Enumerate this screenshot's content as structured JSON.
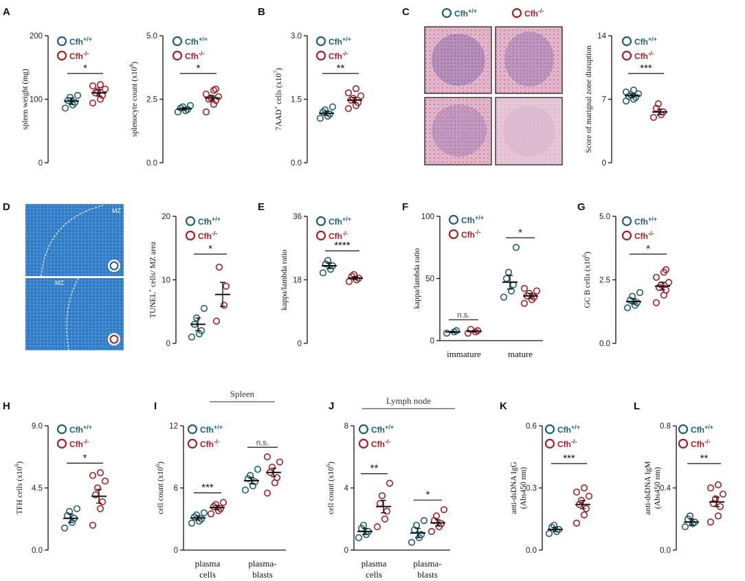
{
  "colors": {
    "wt": "#1d5e6e",
    "ko": "#a51d24"
  },
  "legend": {
    "wt_base": "Cfh",
    "wt_sup": "+/+",
    "ko_base": "Cfh",
    "ko_sup": "-/-"
  },
  "panels": {
    "A": "A",
    "B": "B",
    "C": "C",
    "D": "D",
    "E": "E",
    "F": "F",
    "G": "G",
    "H": "H",
    "I": "I",
    "J": "J",
    "K": "K",
    "L": "L"
  },
  "micro_labels": {
    "mz": "MZ"
  },
  "chart_data": [
    {
      "id": "A1",
      "type": "scatter",
      "ylabel": "spleen weight (mg)",
      "yticks": [
        "0",
        "100",
        "200"
      ],
      "ylim": [
        0,
        200
      ],
      "groups": [
        {
          "name": "Cfh+/+",
          "mean": 97,
          "sem": 5,
          "points": [
            86,
            91,
            95,
            98,
            103,
            106
          ]
        },
        {
          "name": "Cfh-/-",
          "mean": 110,
          "sem": 5,
          "points": [
            94,
            100,
            106,
            110,
            113,
            116,
            121,
            123
          ]
        }
      ],
      "sig": [
        {
          "label": "*",
          "from": 0,
          "to": 1
        }
      ]
    },
    {
      "id": "A2",
      "type": "scatter",
      "ylabel": "splenocyte count (x10^8)",
      "yticks": [
        "0.0",
        "2.5",
        "5.0"
      ],
      "ylim": [
        0,
        5
      ],
      "groups": [
        {
          "name": "Cfh+/+",
          "mean": 2.12,
          "sem": 0.05,
          "points": [
            2.0,
            2.05,
            2.1,
            2.15,
            2.2,
            2.25
          ]
        },
        {
          "name": "Cfh-/-",
          "mean": 2.55,
          "sem": 0.08,
          "points": [
            2.0,
            2.3,
            2.45,
            2.5,
            2.55,
            2.6,
            2.7,
            2.85,
            2.9
          ]
        }
      ],
      "sig": [
        {
          "label": "*",
          "from": 0,
          "to": 1
        }
      ]
    },
    {
      "id": "B",
      "type": "scatter",
      "ylabel": "7AAD+ cells (x10^7)",
      "yticks": [
        "0.0",
        "1.5",
        "3.0"
      ],
      "ylim": [
        0,
        3
      ],
      "groups": [
        {
          "name": "Cfh+/+",
          "mean": 1.17,
          "sem": 0.05,
          "points": [
            1.05,
            1.1,
            1.15,
            1.2,
            1.25,
            1.32
          ]
        },
        {
          "name": "Cfh-/-",
          "mean": 1.48,
          "sem": 0.06,
          "points": [
            1.28,
            1.35,
            1.42,
            1.48,
            1.52,
            1.58,
            1.65,
            1.75
          ]
        }
      ],
      "sig": [
        {
          "label": "**",
          "from": 0,
          "to": 1
        }
      ]
    },
    {
      "id": "C",
      "type": "scatter",
      "ylabel": "Score of marignal zone disruption",
      "yticks": [
        "0",
        "7",
        "14"
      ],
      "ylim": [
        0,
        14
      ],
      "groups": [
        {
          "name": "Cfh+/+",
          "mean": 7.4,
          "sem": 0.2,
          "points": [
            6.8,
            7.0,
            7.2,
            7.3,
            7.5,
            7.6,
            7.8,
            8.0
          ]
        },
        {
          "name": "Cfh-/-",
          "mean": 5.6,
          "sem": 0.3,
          "points": [
            5.0,
            5.3,
            5.6,
            6.0,
            6.5
          ]
        }
      ],
      "sig": [
        {
          "label": "***",
          "from": 0,
          "to": 1
        }
      ]
    },
    {
      "id": "D",
      "type": "scatter",
      "ylabel": "TUNEL+ cells/ MZ area",
      "yticks": [
        "0",
        "10",
        "20"
      ],
      "ylim": [
        0,
        20
      ],
      "groups": [
        {
          "name": "Cfh+/+",
          "mean": 3,
          "sem": 1,
          "points": [
            1,
            1.5,
            2,
            3,
            4,
            5.5
          ]
        },
        {
          "name": "Cfh-/-",
          "mean": 7.7,
          "sem": 1.9,
          "points": [
            3.5,
            6,
            9,
            12
          ]
        }
      ],
      "sig": [
        {
          "label": "*",
          "from": 0,
          "to": 1
        }
      ]
    },
    {
      "id": "E",
      "type": "scatter",
      "ylabel": "kappa/lambda ratio",
      "yticks": [
        "0",
        "18",
        "36"
      ],
      "ylim": [
        0,
        36
      ],
      "groups": [
        {
          "name": "Cfh+/+",
          "mean": 22,
          "sem": 0.8,
          "points": [
            20,
            21,
            22,
            22.5,
            23.5
          ]
        },
        {
          "name": "Cfh-/-",
          "mean": 18.5,
          "sem": 0.4,
          "points": [
            17.5,
            18,
            18.5,
            19,
            19.5
          ]
        }
      ],
      "sig": [
        {
          "label": "****",
          "from": 0,
          "to": 1
        }
      ]
    },
    {
      "id": "F",
      "type": "scatter",
      "ylabel": "kappa/lambda ratio",
      "yticks": [
        "0",
        "50",
        "100"
      ],
      "ylim": [
        0,
        100
      ],
      "categories": [
        "immature",
        "mature"
      ],
      "groups": [
        {
          "name": "Cfh+/+",
          "category": "immature",
          "mean": 7,
          "sem": 0.5,
          "points": [
            6,
            7,
            8
          ]
        },
        {
          "name": "Cfh-/-",
          "category": "immature",
          "mean": 7.5,
          "sem": 0.5,
          "points": [
            6,
            7,
            8,
            9
          ]
        },
        {
          "name": "Cfh+/+",
          "category": "mature",
          "mean": 47,
          "sem": 5.5,
          "points": [
            35,
            40,
            45,
            50,
            55,
            75
          ]
        },
        {
          "name": "Cfh-/-",
          "category": "mature",
          "mean": 36,
          "sem": 2,
          "points": [
            30,
            33,
            35,
            36,
            38,
            40,
            42
          ]
        }
      ],
      "sig": [
        {
          "label": "n.s.",
          "from": 0,
          "to": 1
        },
        {
          "label": "*",
          "from": 2,
          "to": 3
        }
      ]
    },
    {
      "id": "G",
      "type": "scatter",
      "ylabel": "GC B cells (x10^6)",
      "yticks": [
        "0.0",
        "2.5",
        "5.0"
      ],
      "ylim": [
        0,
        5
      ],
      "groups": [
        {
          "name": "Cfh+/+",
          "mean": 1.65,
          "sem": 0.1,
          "points": [
            1.4,
            1.5,
            1.6,
            1.7,
            1.85,
            2.0
          ]
        },
        {
          "name": "Cfh-/-",
          "mean": 2.25,
          "sem": 0.15,
          "points": [
            1.6,
            1.9,
            2.1,
            2.2,
            2.3,
            2.4,
            2.6,
            2.8,
            2.9
          ]
        }
      ],
      "sig": [
        {
          "label": "*",
          "from": 0,
          "to": 1
        }
      ]
    },
    {
      "id": "H",
      "type": "scatter",
      "ylabel": "TFH cells (x10^6)",
      "yticks": [
        "0.0",
        "4.5",
        "9.0"
      ],
      "ylim": [
        0,
        9
      ],
      "groups": [
        {
          "name": "Cfh+/+",
          "mean": 2.3,
          "sem": 0.3,
          "points": [
            1.6,
            2.0,
            2.3,
            2.5,
            2.8,
            3.0
          ]
        },
        {
          "name": "Cfh-/-",
          "mean": 3.9,
          "sem": 0.5,
          "points": [
            1.8,
            3.0,
            3.5,
            4.0,
            4.5,
            5.0,
            5.4,
            5.6
          ]
        }
      ],
      "sig": [
        {
          "label": "*",
          "from": 0,
          "to": 1
        }
      ]
    },
    {
      "id": "I",
      "type": "scatter",
      "ylabel": "cell count (x10^6)",
      "yticks": [
        "0",
        "6",
        "12"
      ],
      "ylim": [
        0,
        12
      ],
      "group_title": "Spleen",
      "categories": [
        "plasma cells",
        "plasma-blasts"
      ],
      "groups": [
        {
          "name": "Cfh+/+",
          "category": "plasma cells",
          "mean": 3.1,
          "sem": 0.2,
          "points": [
            2.6,
            2.8,
            3.0,
            3.2,
            3.4,
            3.6
          ]
        },
        {
          "name": "Cfh-/-",
          "category": "plasma cells",
          "mean": 4.1,
          "sem": 0.2,
          "points": [
            3.5,
            3.8,
            4.0,
            4.2,
            4.4,
            4.6
          ]
        },
        {
          "name": "Cfh+/+",
          "category": "plasma-blasts",
          "mean": 6.7,
          "sem": 0.3,
          "points": [
            5.8,
            6.2,
            6.6,
            6.9,
            7.2,
            7.8
          ]
        },
        {
          "name": "Cfh-/-",
          "category": "plasma-blasts",
          "mean": 7.5,
          "sem": 0.4,
          "points": [
            5.5,
            6.5,
            7.0,
            7.5,
            8.0,
            8.5,
            9.0
          ]
        }
      ],
      "sig": [
        {
          "label": "***",
          "from": 0,
          "to": 1
        },
        {
          "label": "n.s.",
          "from": 2,
          "to": 3
        }
      ]
    },
    {
      "id": "J",
      "type": "scatter",
      "ylabel": "cell count (x10^6)",
      "yticks": [
        "0",
        "4",
        "8"
      ],
      "ylim": [
        0,
        8
      ],
      "group_title": "Lymph node",
      "categories": [
        "plasma cells",
        "plasma-blasts"
      ],
      "groups": [
        {
          "name": "Cfh+/+",
          "category": "plasma cells",
          "mean": 1.2,
          "sem": 0.2,
          "points": [
            0.8,
            1.0,
            1.2,
            1.4,
            1.6
          ]
        },
        {
          "name": "Cfh-/-",
          "category": "plasma cells",
          "mean": 2.8,
          "sem": 0.4,
          "points": [
            1.5,
            2.0,
            2.5,
            3.0,
            3.5,
            4.3
          ]
        },
        {
          "name": "Cfh+/+",
          "category": "plasma-blasts",
          "mean": 1.1,
          "sem": 0.3,
          "points": [
            0.5,
            0.8,
            1.0,
            1.3,
            1.6,
            1.9
          ]
        },
        {
          "name": "Cfh-/-",
          "category": "plasma-blasts",
          "mean": 1.75,
          "sem": 0.2,
          "points": [
            1.2,
            1.5,
            1.7,
            1.9,
            2.2,
            2.6
          ]
        }
      ],
      "sig": [
        {
          "label": "**",
          "from": 0,
          "to": 1
        },
        {
          "label": "*",
          "from": 2,
          "to": 3
        }
      ]
    },
    {
      "id": "K",
      "type": "scatter",
      "ylabel": "anti-dsDNA IgG",
      "ylabel2": "(Abs450 nm)",
      "yticks": [
        "0.0",
        "0.3",
        "0.6"
      ],
      "ylim": [
        0,
        0.6
      ],
      "groups": [
        {
          "name": "Cfh+/+",
          "mean": 0.1,
          "sem": 0.01,
          "points": [
            0.08,
            0.09,
            0.1,
            0.11,
            0.12
          ]
        },
        {
          "name": "Cfh-/-",
          "mean": 0.22,
          "sem": 0.02,
          "points": [
            0.13,
            0.17,
            0.2,
            0.22,
            0.24,
            0.26,
            0.28,
            0.3
          ]
        }
      ],
      "sig": [
        {
          "label": "***",
          "from": 0,
          "to": 1
        }
      ]
    },
    {
      "id": "L",
      "type": "scatter",
      "ylabel": "anti-dsDNA IgM",
      "ylabel2": "(Abs450 nm)",
      "yticks": [
        "0.0",
        "0.4",
        "0.8"
      ],
      "ylim": [
        0,
        0.8
      ],
      "groups": [
        {
          "name": "Cfh+/+",
          "mean": 0.18,
          "sem": 0.02,
          "points": [
            0.15,
            0.17,
            0.18,
            0.2,
            0.22
          ]
        },
        {
          "name": "Cfh-/-",
          "mean": 0.31,
          "sem": 0.03,
          "points": [
            0.18,
            0.22,
            0.28,
            0.3,
            0.33,
            0.36,
            0.4,
            0.42
          ]
        }
      ],
      "sig": [
        {
          "label": "**",
          "from": 0,
          "to": 1
        }
      ]
    }
  ]
}
